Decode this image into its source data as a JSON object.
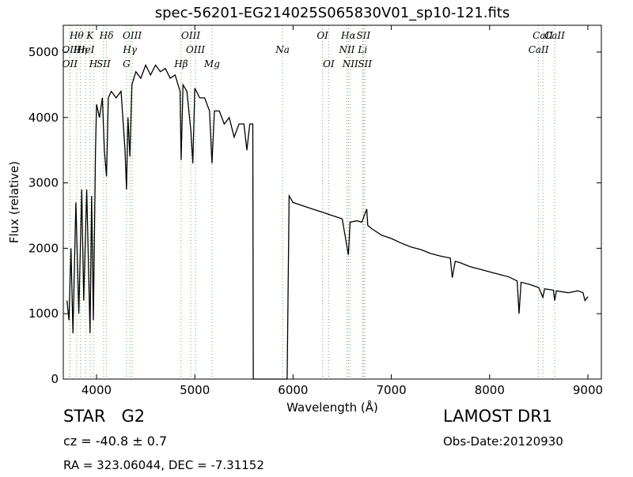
{
  "chart_data": {
    "type": "line",
    "title": "spec-56201-EG214025S065830V01_sp10-121.fits",
    "x_label": "Wavelength (Å)",
    "y_label": "Flux (relative)",
    "xlim": [
      3662,
      9137
    ],
    "ylim": [
      0,
      5410
    ],
    "xticks": [
      4000,
      5000,
      6000,
      7000,
      8000,
      9000
    ],
    "yticks": [
      0,
      1000,
      2000,
      3000,
      4000,
      5000
    ],
    "color": "#000000",
    "marker_color": "#5cb85c",
    "x": [
      3700,
      3720,
      3740,
      3760,
      3790,
      3820,
      3850,
      3870,
      3900,
      3934,
      3950,
      3968,
      3990,
      4000,
      4030,
      4060,
      4080,
      4102,
      4120,
      4150,
      4200,
      4250,
      4290,
      4305,
      4320,
      4340,
      4360,
      4400,
      4450,
      4500,
      4550,
      4600,
      4650,
      4700,
      4750,
      4800,
      4850,
      4861,
      4880,
      4920,
      4960,
      4980,
      5000,
      5050,
      5100,
      5150,
      5175,
      5200,
      5250,
      5300,
      5350,
      5400,
      5450,
      5500,
      5530,
      5560,
      5590,
      5595,
      5940,
      5960,
      6000,
      6100,
      6200,
      6300,
      6400,
      6500,
      6563,
      6580,
      6650,
      6700,
      6750,
      6760,
      6800,
      6900,
      7000,
      7100,
      7200,
      7300,
      7400,
      7500,
      7600,
      7620,
      7650,
      7700,
      7800,
      7900,
      8000,
      8100,
      8200,
      8280,
      8300,
      8320,
      8400,
      8500,
      8542,
      8560,
      8650,
      8662,
      8680,
      8800,
      8900,
      8950,
      8970,
      9000
    ],
    "values": [
      1200,
      900,
      2000,
      700,
      2700,
      1000,
      2900,
      1200,
      2900,
      700,
      2800,
      900,
      3500,
      4200,
      4000,
      4300,
      3500,
      3100,
      4300,
      4400,
      4300,
      4400,
      3500,
      2900,
      4000,
      3400,
      4500,
      4700,
      4600,
      4800,
      4650,
      4800,
      4700,
      4750,
      4600,
      4650,
      4400,
      3350,
      4500,
      4400,
      3800,
      3300,
      4450,
      4300,
      4300,
      4100,
      3300,
      4100,
      4100,
      3900,
      4000,
      3700,
      3900,
      3900,
      3500,
      3900,
      3900,
      0,
      0,
      2800,
      2700,
      2650,
      2600,
      2550,
      2500,
      2450,
      1900,
      2400,
      2420,
      2400,
      2600,
      2350,
      2300,
      2200,
      2150,
      2080,
      2020,
      1980,
      1920,
      1880,
      1850,
      1550,
      1800,
      1780,
      1720,
      1680,
      1640,
      1600,
      1560,
      1500,
      1000,
      1480,
      1450,
      1400,
      1250,
      1380,
      1360,
      1200,
      1350,
      1320,
      1350,
      1320,
      1200,
      1260
    ],
    "line_markers": [
      {
        "label": "Hθ",
        "x": 3798
      },
      {
        "label": "OII",
        "x": 3727
      },
      {
        "label": "OII",
        "x": 3729
      },
      {
        "label": "K",
        "x": 3934
      },
      {
        "label": "Hη",
        "x": 3835
      },
      {
        "label": "H",
        "x": 3968
      },
      {
        "label": "Hδ",
        "x": 4102
      },
      {
        "label": "HeI",
        "x": 3889
      },
      {
        "label": "SII",
        "x": 4072
      },
      {
        "label": "OIII",
        "x": 4363
      },
      {
        "label": "Hγ",
        "x": 4340
      },
      {
        "label": "G",
        "x": 4305
      },
      {
        "label": "OIII",
        "x": 4959
      },
      {
        "label": "OIII",
        "x": 5007
      },
      {
        "label": "Hβ",
        "x": 4861
      },
      {
        "label": "OI",
        "x": 6300
      },
      {
        "label": "Na",
        "x": 5893
      },
      {
        "label": "Mg",
        "x": 5175
      },
      {
        "label": "Hα",
        "x": 6563
      },
      {
        "label": "NII",
        "x": 6548
      },
      {
        "label": "OI",
        "x": 6363
      },
      {
        "label": "SII",
        "x": 6716
      },
      {
        "label": "Li",
        "x": 6708
      },
      {
        "label": "NII",
        "x": 6583
      },
      {
        "label": "CaII",
        "x": 8542
      },
      {
        "label": "CaII",
        "x": 8498
      },
      {
        "label": "SII",
        "x": 6731
      },
      {
        "label": "CaII",
        "x": 8662
      }
    ],
    "annotations": [
      "STAR   G2",
      "LAMOST DR1",
      "cz = -40.8 ± 0.7",
      "Obs-Date:20120930",
      "RA = 323.06044, DEC = -7.31152"
    ]
  }
}
